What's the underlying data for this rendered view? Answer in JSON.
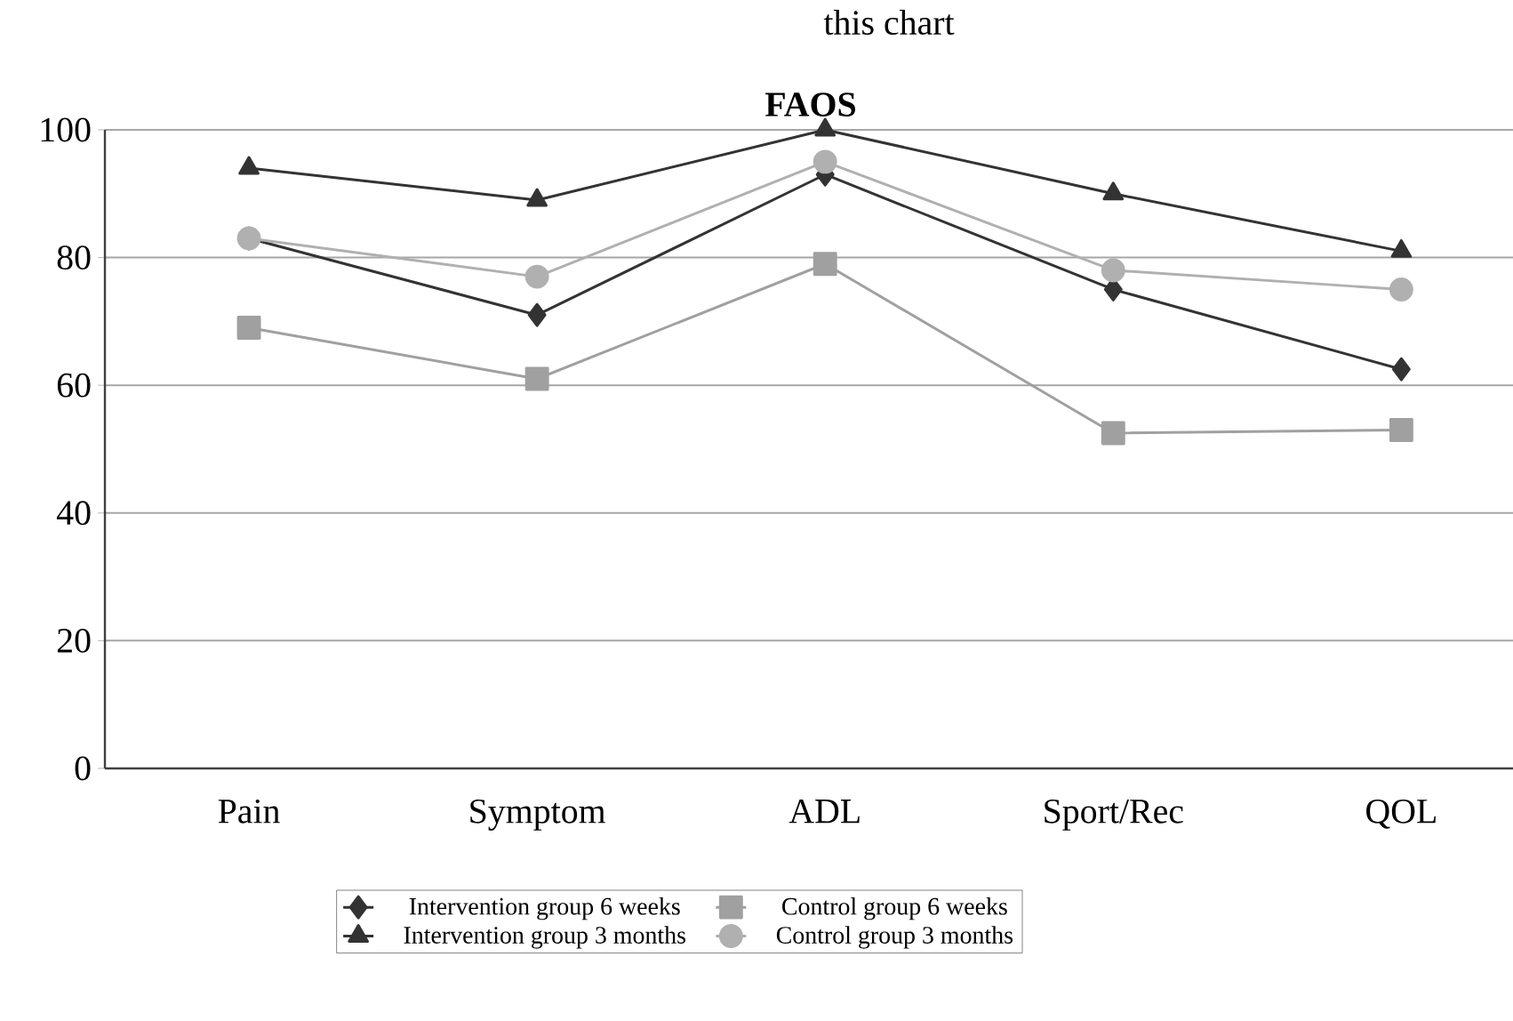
{
  "chart_data": {
    "type": "line",
    "title": "FAOS",
    "annotations": [
      "this chart"
    ],
    "categories": [
      "Pain",
      "Symptom",
      "ADL",
      "Sport/Rec",
      "QOL"
    ],
    "series": [
      {
        "name": "Intervention group 6 weeks",
        "color": "#333333",
        "marker": "diamond",
        "values": [
          83,
          71,
          93,
          75,
          62.5
        ]
      },
      {
        "name": "Control group 6 weeks",
        "color": "#a0a0a0",
        "marker": "square",
        "values": [
          69,
          61,
          79,
          52.5,
          53
        ]
      },
      {
        "name": "Intervention group 3 months",
        "color": "#333333",
        "marker": "triangle",
        "values": [
          94,
          89,
          100,
          90,
          81
        ]
      },
      {
        "name": "Control group 3 months",
        "color": "#b0b0b0",
        "marker": "circle",
        "values": [
          83,
          77,
          95,
          78,
          75
        ]
      }
    ],
    "ylim": [
      0,
      100
    ],
    "yticks": [
      0,
      20,
      40,
      60,
      80,
      100
    ],
    "grid": "y",
    "legend": "bottom"
  }
}
